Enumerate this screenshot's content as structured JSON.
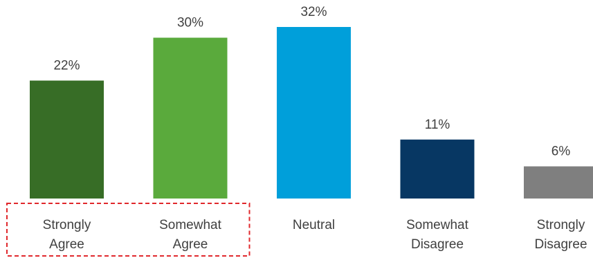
{
  "chart_data": {
    "type": "bar",
    "title": "",
    "xlabel": "",
    "ylabel": "",
    "categories": [
      [
        "Strongly",
        "Agree"
      ],
      [
        "Somewhat",
        "Agree"
      ],
      [
        "Neutral"
      ],
      [
        "Somewhat",
        "Disagree"
      ],
      [
        "Strongly",
        "Disagree"
      ]
    ],
    "values": [
      22,
      30,
      32,
      11,
      6
    ],
    "value_labels": [
      "22%",
      "30%",
      "32%",
      "11%",
      "6%"
    ],
    "colors": [
      "#376d26",
      "#5aaa3c",
      "#009fda",
      "#073763",
      "#7f7f7f"
    ],
    "ylim": [
      0,
      32
    ],
    "grid": false,
    "highlight": {
      "categories": [
        0,
        1
      ],
      "style": "dashed-box",
      "color": "#e0282c"
    }
  }
}
